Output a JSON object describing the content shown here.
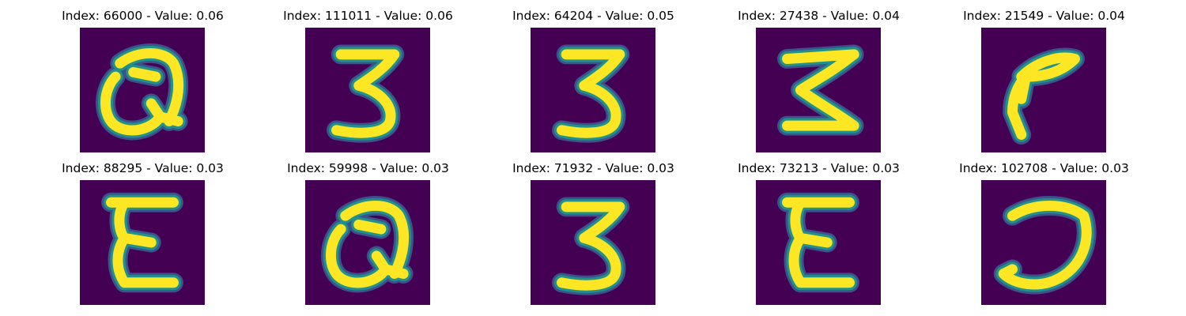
{
  "colors": {
    "background": "#440154",
    "ink": "#fde725",
    "edge_mid": "#21918c",
    "edge_low": "#3b528b"
  },
  "images": [
    {
      "title": "Index: 66000 - Value: 0.06",
      "glyph": "looped-a"
    },
    {
      "title": "Index: 111011 - Value: 0.06",
      "glyph": "three"
    },
    {
      "title": "Index: 64204 - Value: 0.05",
      "glyph": "three"
    },
    {
      "title": "Index: 27438 - Value: 0.04",
      "glyph": "sigma"
    },
    {
      "title": "Index: 21549 - Value: 0.04",
      "glyph": "hook"
    },
    {
      "title": "Index: 88295 - Value: 0.03",
      "glyph": "epsilon"
    },
    {
      "title": "Index: 59998 - Value: 0.03",
      "glyph": "looped-a"
    },
    {
      "title": "Index: 71932 - Value: 0.03",
      "glyph": "three"
    },
    {
      "title": "Index: 73213 - Value: 0.03",
      "glyph": "epsilon"
    },
    {
      "title": "Index: 102708 - Value: 0.03",
      "glyph": "open-loop"
    }
  ]
}
